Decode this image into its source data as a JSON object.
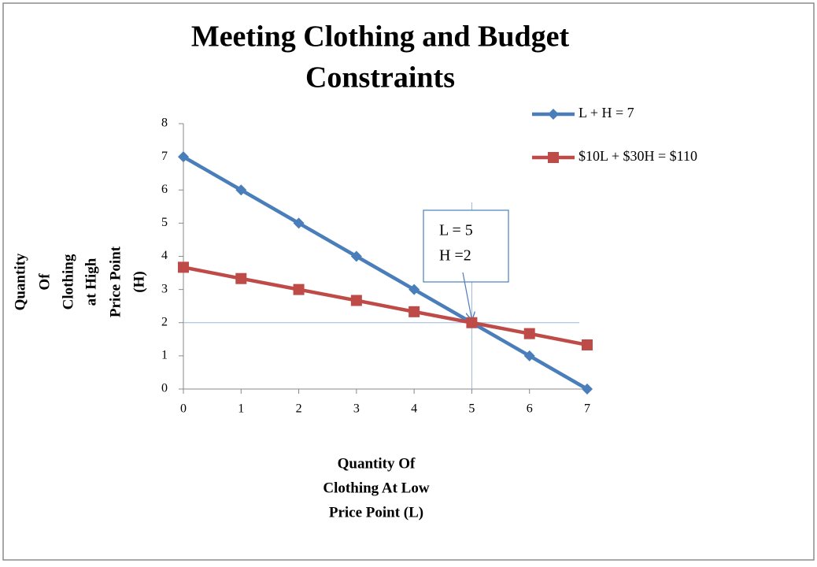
{
  "chart_data": {
    "type": "line",
    "title": [
      "Meeting Clothing and Budget",
      "Constraints"
    ],
    "x_label": [
      "Quantity Of",
      "Clothing At Low",
      "Price Point (L)"
    ],
    "y_label": [
      "Quantity",
      "Of",
      "Clothing",
      "at High",
      "Price Point",
      "(H)"
    ],
    "x": [
      0,
      1,
      2,
      3,
      4,
      5,
      6,
      7
    ],
    "series": [
      {
        "name": "L + H = 7",
        "color": "#4a7ebb",
        "marker": "diamond",
        "values": [
          7,
          6,
          5,
          4,
          3,
          2,
          1,
          0
        ]
      },
      {
        "name": "$10L + $30H = $110",
        "color": "#be4b48",
        "marker": "square",
        "values": [
          3.67,
          3.33,
          3,
          2.67,
          2.33,
          2,
          1.67,
          1.33
        ]
      }
    ],
    "xlim": [
      0,
      7
    ],
    "ylim": [
      0,
      8
    ],
    "xticks": [
      0,
      1,
      2,
      3,
      4,
      5,
      6,
      7
    ],
    "yticks": [
      0,
      1,
      2,
      3,
      4,
      5,
      6,
      7,
      8
    ],
    "grid": false,
    "legend": "right",
    "annotation": {
      "lines": [
        "L = 5",
        "H =2"
      ],
      "x": 5,
      "y": 2
    }
  }
}
